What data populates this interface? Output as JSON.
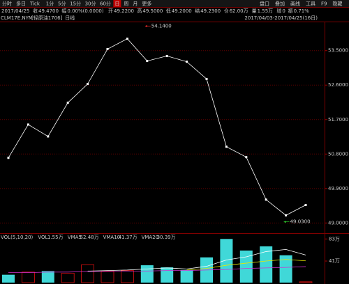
{
  "toolbar": {
    "tabs": [
      "分时",
      "多日",
      "Tick",
      "1分",
      "5分",
      "15分",
      "30分",
      "60分",
      "日",
      "周",
      "月",
      "更多"
    ],
    "active_tab_index": 8,
    "tools": [
      "盘口",
      "叠加",
      "画线",
      "工具",
      "F9",
      "隐藏"
    ]
  },
  "quote": {
    "date": "2017/04/25",
    "items": [
      {
        "label": "收",
        "value": "49.4700",
        "color": "#ff4040"
      },
      {
        "label": "幅",
        "value": "0.00%(0.0000)",
        "color": "#dddddd"
      },
      {
        "label": "开",
        "value": "49.2200",
        "color": "#ff4040"
      },
      {
        "label": "高",
        "value": "49.5000",
        "color": "#ff4040"
      },
      {
        "label": "低",
        "value": "49.2000",
        "color": "#ff4040"
      },
      {
        "label": "结",
        "value": "49.2300",
        "color": "#dddddd"
      },
      {
        "label": "仓",
        "value": "62.00万",
        "color": "#dddddd"
      },
      {
        "label": "量",
        "value": "1.55万",
        "color": "#dddddd"
      },
      {
        "label": "增",
        "value": "0",
        "color": "#dddddd"
      },
      {
        "label": "振",
        "value": "0.71%",
        "color": "#dddddd"
      }
    ]
  },
  "symbol": {
    "code": "CLM17E.NYM",
    "name": "[轻原油1706]",
    "period": "日线",
    "range": "2017/04/03-2017/04/25(16日)"
  },
  "chart_data": [
    {
      "type": "line",
      "color": "#ffffff",
      "values": [
        50.7,
        51.57,
        51.26,
        52.14,
        52.63,
        53.54,
        53.81,
        53.23,
        53.36,
        53.21,
        52.76,
        50.99,
        50.72,
        49.61,
        49.2,
        49.47
      ],
      "ylim": [
        48.77,
        54.24
      ],
      "yticks": [
        {
          "value": 53.5,
          "label": "53.5000"
        },
        {
          "value": 52.6,
          "label": "52.6000"
        },
        {
          "value": 51.7,
          "label": "51.7000"
        },
        {
          "value": 50.8,
          "label": "50.8000"
        },
        {
          "value": 49.9,
          "label": "49.9000"
        },
        {
          "value": 49.0,
          "label": "49.0000"
        }
      ],
      "grid": true,
      "annotations": [
        {
          "value": 54.14,
          "label": "54.1400",
          "index": 7,
          "color": "#ff3030"
        },
        {
          "value": 49.03,
          "label": "49.0300",
          "index": 14,
          "color": "#30d030"
        }
      ]
    },
    {
      "type": "bar",
      "title": "VOL(5,10,20)",
      "bar_name": "VOL",
      "bar_label": "1.55万",
      "values": [
        15,
        20,
        22,
        18,
        34,
        22,
        23,
        33,
        29,
        24,
        48,
        83,
        61,
        69,
        52,
        1.55
      ],
      "bar_colors": [
        "#40d8d8",
        "#e01010",
        "#40d8d8",
        "#e01010",
        "#e01010",
        "#e01010",
        "#e01010",
        "#40d8d8",
        "#40d8d8",
        "#40d8d8",
        "#40d8d8",
        "#40d8d8",
        "#40d8d8",
        "#40d8d8",
        "#40d8d8",
        "#e01010"
      ],
      "hollow_color": "#e01010",
      "series": [
        {
          "name": "VMA5",
          "value_label": "52.48万",
          "color": "#ffffff",
          "values": [
            null,
            null,
            null,
            null,
            22,
            23,
            24,
            26,
            28,
            26,
            31,
            43,
            49,
            59,
            63,
            52.48
          ]
        },
        {
          "name": "VMA10",
          "value_label": "41.37万",
          "color": "#e8e800",
          "values": [
            null,
            null,
            null,
            null,
            null,
            null,
            null,
            null,
            null,
            24,
            27,
            33,
            37,
            41,
            44,
            41.37
          ]
        },
        {
          "name": "VMA20",
          "value_label": "30.39万",
          "color": "#d030d0",
          "values": [
            19,
            19,
            20,
            20,
            21,
            21,
            22,
            22,
            23,
            23,
            24,
            25,
            27,
            28,
            29,
            30.39
          ]
        }
      ],
      "ylim": [
        0,
        90
      ],
      "yticks": [
        {
          "value": 83,
          "label": "83万"
        },
        {
          "value": 41,
          "label": "41万"
        }
      ]
    }
  ]
}
